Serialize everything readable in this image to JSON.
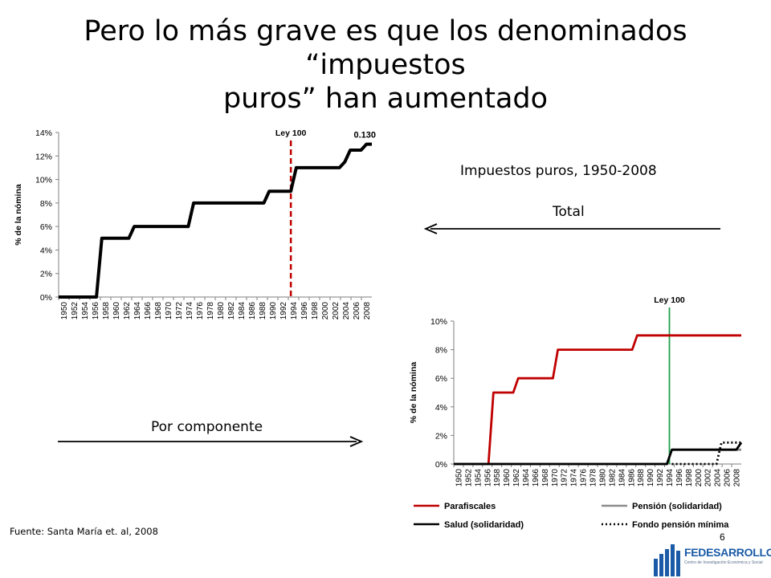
{
  "slide": {
    "title_line1": "Pero lo más grave es que los denominados “impuestos",
    "title_line2": "puros” han aumentado",
    "label_main": "Impuestos puros, 1950-2008",
    "label_total": "Total",
    "label_componente": "Por componente",
    "source": "Fuente: Santa María et. al, 2008",
    "page_number": "6",
    "logo": {
      "name": "FEDESARROLLO",
      "subtitle": "Centro de Investigación Económica y Social",
      "color": "#1a5aa6"
    }
  },
  "chart_data": [
    {
      "type": "line",
      "ylabel": "% de la nómina",
      "yticks": [
        0,
        2,
        4,
        6,
        8,
        10,
        12,
        14
      ],
      "ytick_format": "percent",
      "ylim": [
        0,
        14
      ],
      "x_tick_labels": [
        "1950",
        "1952",
        "1954",
        "1956",
        "1958",
        "1960",
        "1962",
        "1964",
        "1966",
        "1968",
        "1970",
        "1972",
        "1974",
        "1976",
        "1978",
        "1980",
        "1982",
        "1984",
        "1986",
        "1988",
        "1990",
        "1992",
        "1994",
        "1996",
        "1998",
        "2000",
        "2002",
        "2004",
        "2006",
        "2008"
      ],
      "xlim": [
        1950,
        2008
      ],
      "annotation_law": {
        "text": "Ley 100",
        "x": 1993,
        "color": "#c00000",
        "style": "dashed"
      },
      "annotation_value": {
        "text": "0.130",
        "x": 2007
      },
      "series": [
        {
          "color": "#000000",
          "x": [
            1950,
            1957,
            1958,
            1963,
            1964,
            1974,
            1975,
            1988,
            1989,
            1993,
            1994,
            2002,
            2003,
            2004,
            2005,
            2006,
            2007,
            2008
          ],
          "y": [
            0,
            0,
            5,
            5,
            6,
            6,
            8,
            8,
            9,
            9,
            11,
            11,
            11.5,
            12.5,
            12.5,
            12.5,
            13,
            13
          ]
        }
      ]
    },
    {
      "type": "line",
      "ylabel": "% de la nómina",
      "yticks": [
        0,
        2,
        4,
        6,
        8,
        10
      ],
      "ytick_format": "percent",
      "ylim": [
        0,
        10
      ],
      "x_tick_labels": [
        "1950",
        "1952",
        "1954",
        "1956",
        "1958",
        "1960",
        "1962",
        "1964",
        "1966",
        "1968",
        "1970",
        "1972",
        "1974",
        "1976",
        "1978",
        "1980",
        "1982",
        "1984",
        "1986",
        "1988",
        "1990",
        "1992",
        "1994",
        "1996",
        "1998",
        "2000",
        "2002",
        "2004",
        "2006",
        "2008"
      ],
      "xlim": [
        1950,
        2008
      ],
      "annotation_law": {
        "text": "Ley 100",
        "x": 1993.5,
        "color": "#22a04b",
        "style": "solid"
      },
      "legend": [
        {
          "name": "Parafiscales",
          "color": "#c00000",
          "style": "solid"
        },
        {
          "name": "Pensión (solidaridad)",
          "color": "#8c8c8c",
          "style": "solid"
        },
        {
          "name": "Salud (solidaridad)",
          "color": "#000000",
          "style": "solid"
        },
        {
          "name": "Fondo pensión mínima",
          "color": "#000000",
          "style": "dotted"
        }
      ],
      "series": [
        {
          "name": "Parafiscales",
          "color": "#c00000",
          "style": "solid",
          "x": [
            1950,
            1957,
            1958,
            1962,
            1963,
            1970,
            1971,
            1986,
            1987,
            2008
          ],
          "y": [
            0,
            0,
            5,
            5,
            6,
            6,
            8,
            8,
            9,
            9
          ]
        },
        {
          "name": "Pensión (solidaridad)",
          "color": "#8c8c8c",
          "style": "solid",
          "x": [
            1950,
            1993,
            1994,
            2008
          ],
          "y": [
            0,
            0,
            1,
            1
          ]
        },
        {
          "name": "Salud (solidaridad)",
          "color": "#000000",
          "style": "solid",
          "x": [
            1950,
            1993,
            1994,
            2007,
            2008
          ],
          "y": [
            0,
            0,
            1,
            1,
            1.5
          ]
        },
        {
          "name": "Fondo pensión mínima",
          "color": "#000000",
          "style": "dotted",
          "x": [
            1994,
            2003,
            2004,
            2007,
            2008
          ],
          "y": [
            0,
            0,
            1.5,
            1.5,
            1.5
          ]
        }
      ]
    }
  ]
}
